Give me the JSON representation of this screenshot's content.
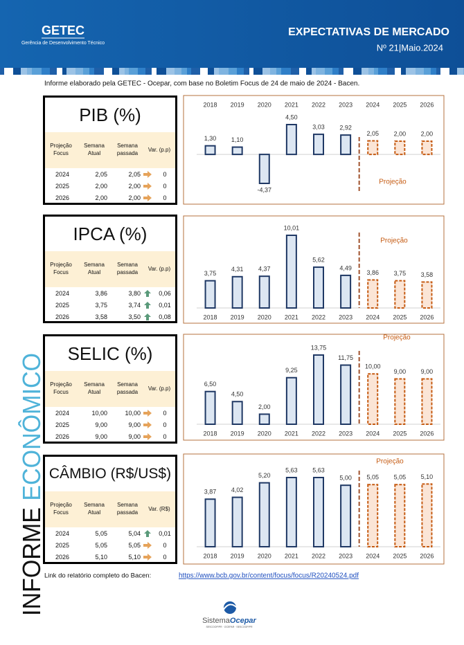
{
  "header": {
    "org": "GETEC",
    "org_subtitle": "Gerência de Desenvolvimento Técnico",
    "title": "EXPECTATIVAS DE MERCADO",
    "issue": "Nº 21|Maio.2024"
  },
  "intro": "Informe elaborado pela GETEC - Ocepar, com base no Boletim Focus de 24 de maio de 2024 - Bacen.",
  "sidebar": [
    "INFORME",
    "ECONÔMICO"
  ],
  "tables": [
    {
      "title": "PIB (%)",
      "headers": [
        "Projeção Focus",
        "Semana Atual",
        "Semana passada",
        "Var. (p.p)"
      ],
      "rows": [
        [
          "2024",
          "2,05",
          "2,05",
          "0"
        ],
        [
          "2025",
          "2,00",
          "2,00",
          "0"
        ],
        [
          "2026",
          "2,00",
          "2,00",
          "0"
        ]
      ]
    },
    {
      "title": "IPCA (%)",
      "headers": [
        "Projeção Focus",
        "Semana Atual",
        "Semana passada",
        "Var. (p.p)"
      ],
      "rows": [
        [
          "2024",
          "3,86",
          "3,80",
          "0,06"
        ],
        [
          "2025",
          "3,75",
          "3,74",
          "0,01"
        ],
        [
          "2026",
          "3,58",
          "3,50",
          "0,08"
        ]
      ]
    },
    {
      "title": "SELIC (%)",
      "headers": [
        "Projeção Focus",
        "Semana Atual",
        "Semana passada",
        "Var. (p.p)"
      ],
      "rows": [
        [
          "2024",
          "10,00",
          "10,00",
          "0"
        ],
        [
          "2025",
          "9,00",
          "9,00",
          "0"
        ],
        [
          "2026",
          "9,00",
          "9,00",
          "0"
        ]
      ]
    },
    {
      "title": "CÂMBIO (R$/US$)",
      "headers": [
        "Projeção Focus",
        "Semana Atual",
        "Semana passada",
        "Var. (R$)"
      ],
      "rows": [
        [
          "2024",
          "5,05",
          "5,04",
          "0,01"
        ],
        [
          "2025",
          "5,05",
          "5,05",
          "0"
        ],
        [
          "2026",
          "5,10",
          "5,10",
          "0"
        ]
      ]
    }
  ],
  "chart_data": [
    {
      "type": "bar",
      "category_axis": "top",
      "annotation": "Projeção",
      "categories": [
        "2018",
        "2019",
        "2020",
        "2021",
        "2022",
        "2023",
        "2024",
        "2025",
        "2026"
      ],
      "values": [
        1.3,
        1.1,
        -4.37,
        4.5,
        3.03,
        2.92,
        2.05,
        2.0,
        2.0
      ],
      "value_labels": [
        "1,30",
        "1,10",
        "-4,37",
        "4,50",
        "3,03",
        "2,92",
        "2,05",
        "2,00",
        "2,00"
      ],
      "bar_styles": [
        "solid",
        "solid",
        "solid",
        "solid",
        "solid",
        "solid",
        "dashed",
        "dashed",
        "dashed"
      ]
    },
    {
      "type": "bar",
      "category_axis": "bottom",
      "annotation": "Projeção",
      "categories": [
        "2018",
        "2019",
        "2020",
        "2021",
        "2022",
        "2023",
        "2024",
        "2025",
        "2026"
      ],
      "values": [
        3.75,
        4.31,
        4.37,
        10.01,
        5.62,
        4.49,
        3.86,
        3.75,
        3.58
      ],
      "value_labels": [
        "3,75",
        "4,31",
        "4,37",
        "10,01",
        "5,62",
        "4,49",
        "3,86",
        "3,75",
        "3,58"
      ],
      "bar_styles": [
        "solid",
        "solid",
        "solid",
        "solid",
        "solid",
        "solid",
        "dashed",
        "dashed",
        "dashed"
      ]
    },
    {
      "type": "bar",
      "category_axis": "bottom",
      "annotation": "Projeção",
      "categories": [
        "2018",
        "2019",
        "2020",
        "2021",
        "2022",
        "2023",
        "2024",
        "2025",
        "2026"
      ],
      "values": [
        6.5,
        4.5,
        2.0,
        9.25,
        13.75,
        11.75,
        10.0,
        9.0,
        9.0
      ],
      "value_labels": [
        "6,50",
        "4,50",
        "2,00",
        "9,25",
        "13,75",
        "11,75",
        "10,00",
        "9,00",
        "9,00"
      ],
      "bar_styles": [
        "solid",
        "solid",
        "solid",
        "solid",
        "solid",
        "solid",
        "dashed",
        "dashed",
        "dashed"
      ]
    },
    {
      "type": "bar",
      "category_axis": "bottom",
      "annotation": "Projeção",
      "categories": [
        "2018",
        "2019",
        "2020",
        "2021",
        "2022",
        "2023",
        "2024",
        "2025",
        "2026"
      ],
      "values": [
        3.87,
        4.02,
        5.2,
        5.63,
        5.63,
        5.0,
        5.05,
        5.05,
        5.1
      ],
      "value_labels": [
        "3,87",
        "4,02",
        "5,20",
        "5,63",
        "5,63",
        "5,00",
        "5,05",
        "5,05",
        "5,10"
      ],
      "bar_styles": [
        "solid",
        "solid",
        "solid",
        "solid",
        "solid",
        "solid",
        "dashed",
        "dashed",
        "dashed"
      ]
    }
  ],
  "footer": {
    "link_label": "Link do relatório completo do Bacen:",
    "link": "https://www.bcb.gov.br/content/focus/focus/R20240524.pdf",
    "logo": [
      "Sistema",
      "Ocepar"
    ],
    "logo_tagline": "SESCOOP/PR · OCEPAR · SESCOOP/PR"
  }
}
